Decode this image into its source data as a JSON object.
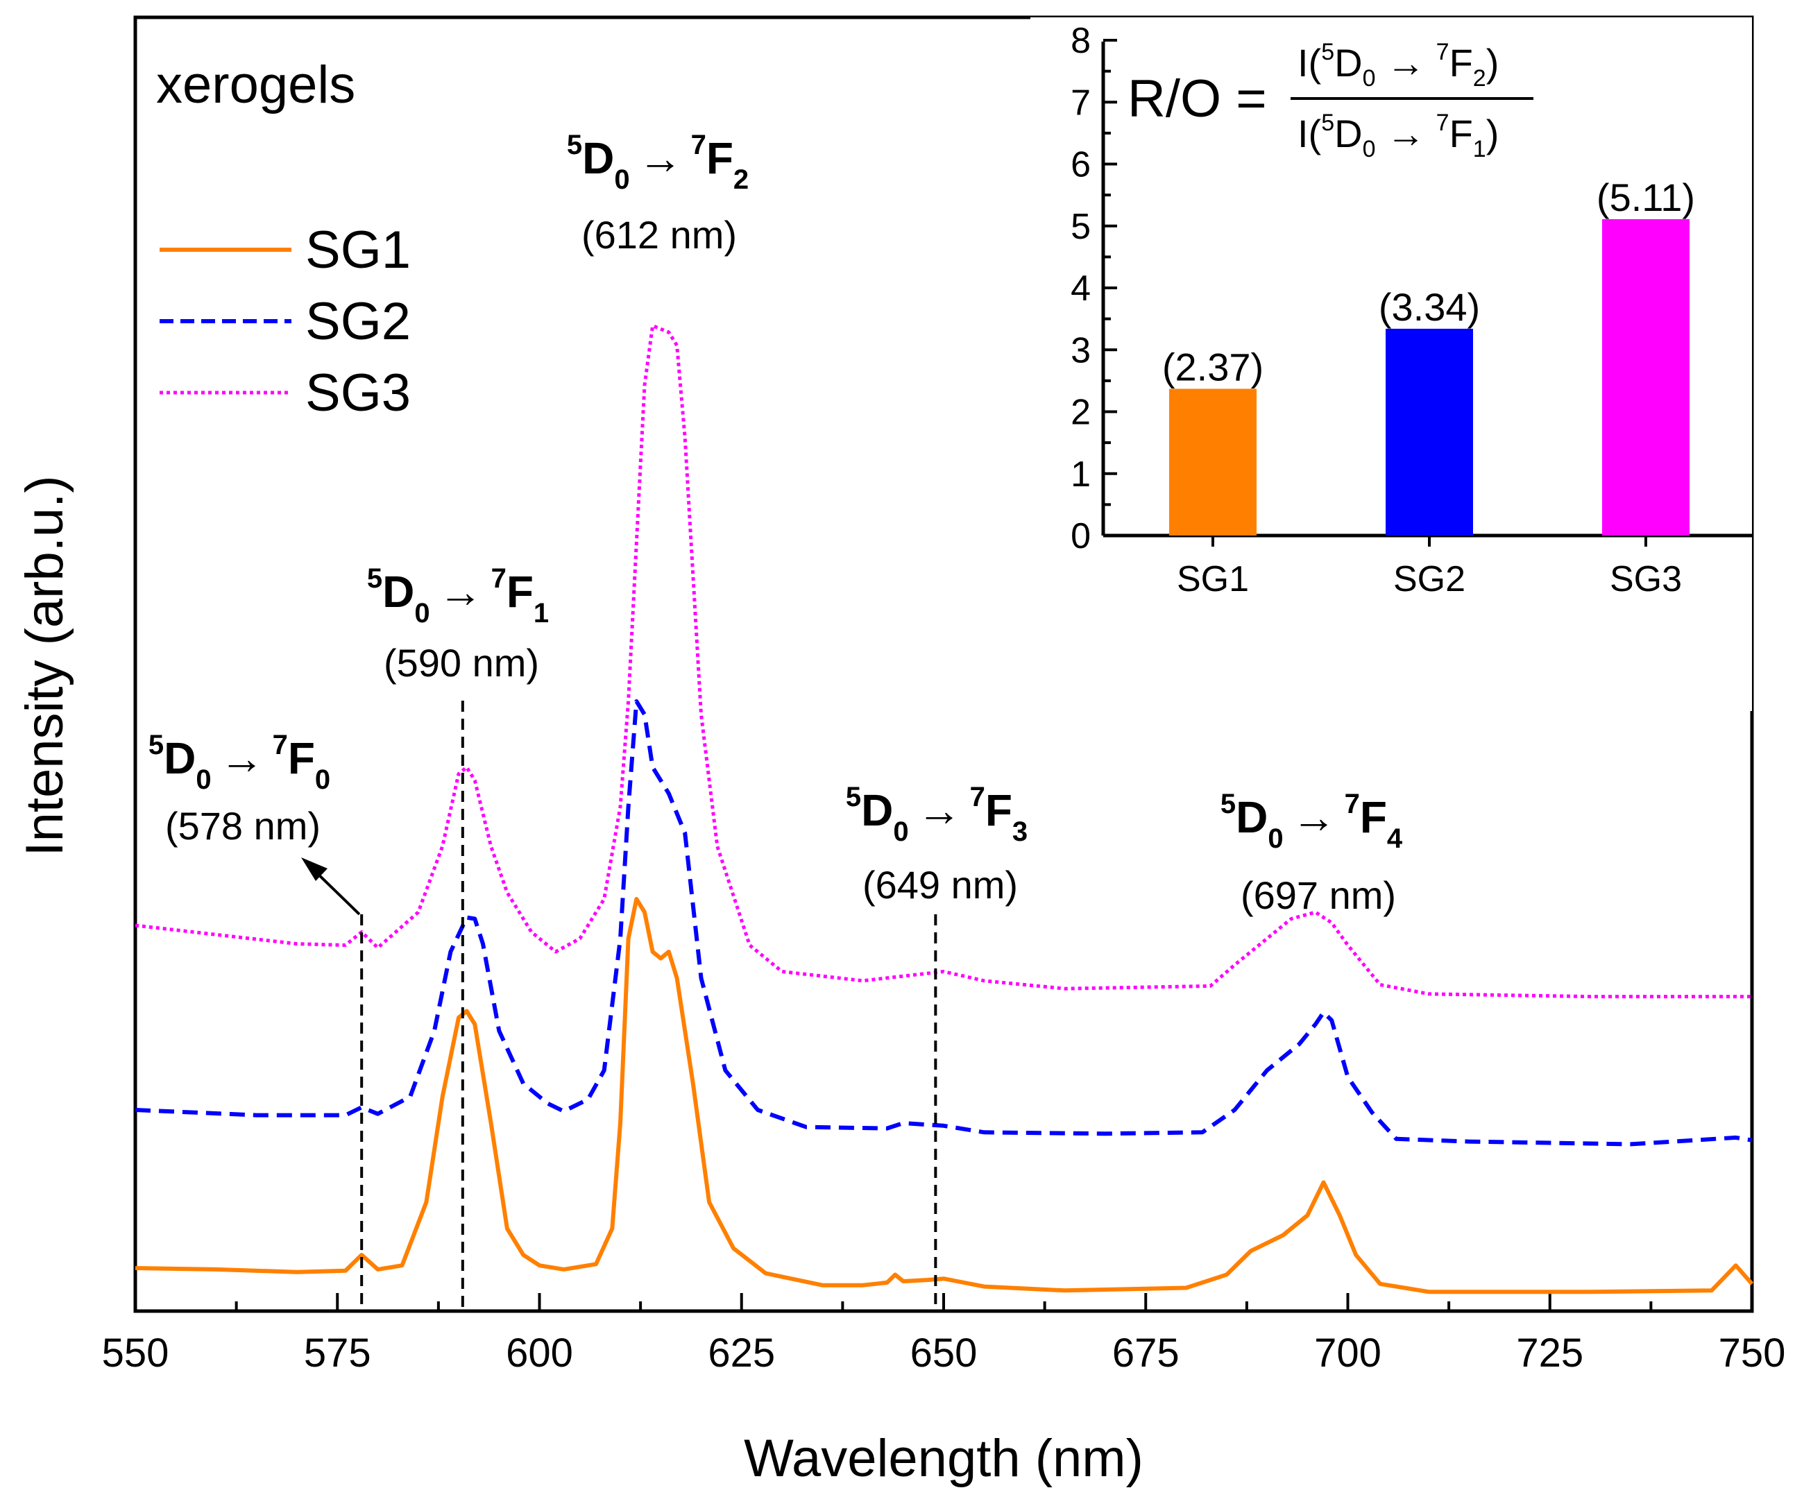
{
  "chart_data": [
    {
      "type": "line",
      "title": "",
      "panel_label": "xerogels",
      "xlabel": "Wavelength (nm)",
      "ylabel": "Intensity (arb.u.)",
      "xlim": [
        550,
        750
      ],
      "ylim": [
        0,
        100
      ],
      "x_ticks": [
        "550",
        "575",
        "600",
        "625",
        "650",
        "675",
        "700",
        "725",
        "750"
      ],
      "legend_position": "top-left",
      "series": [
        {
          "name": "SG1",
          "color": "#ff8000",
          "style": "solid",
          "points": [
            [
              550,
              3.0
            ],
            [
              560,
              2.9
            ],
            [
              570,
              2.7
            ],
            [
              576,
              2.8
            ],
            [
              578,
              4.0
            ],
            [
              580,
              2.9
            ],
            [
              583,
              3.2
            ],
            [
              586,
              8
            ],
            [
              588,
              16
            ],
            [
              590,
              22
            ],
            [
              591,
              22.5
            ],
            [
              592,
              21.5
            ],
            [
              594,
              14
            ],
            [
              596,
              6
            ],
            [
              598,
              4.0
            ],
            [
              600,
              3.2
            ],
            [
              603,
              2.9
            ],
            [
              607,
              3.3
            ],
            [
              609,
              6
            ],
            [
              610,
              14
            ],
            [
              611,
              28
            ],
            [
              612,
              31
            ],
            [
              613,
              30
            ],
            [
              614,
              27
            ],
            [
              615,
              26.5
            ],
            [
              616,
              27
            ],
            [
              617,
              25
            ],
            [
              619,
              17
            ],
            [
              621,
              8
            ],
            [
              624,
              4.5
            ],
            [
              628,
              2.6
            ],
            [
              635,
              1.7
            ],
            [
              640,
              1.7
            ],
            [
              643,
              1.9
            ],
            [
              644,
              2.5
            ],
            [
              645,
              2.0
            ],
            [
              648,
              2.1
            ],
            [
              650,
              2.2
            ],
            [
              655,
              1.6
            ],
            [
              665,
              1.3
            ],
            [
              680,
              1.5
            ],
            [
              685,
              2.5
            ],
            [
              688,
              4.3
            ],
            [
              692,
              5.5
            ],
            [
              695,
              7
            ],
            [
              697,
              9.5
            ],
            [
              699,
              7
            ],
            [
              701,
              4
            ],
            [
              704,
              1.8
            ],
            [
              710,
              1.2
            ],
            [
              730,
              1.2
            ],
            [
              745,
              1.3
            ],
            [
              748,
              3.2
            ],
            [
              750,
              1.8
            ]
          ]
        },
        {
          "name": "SG2",
          "color": "#0000ff",
          "style": "dashed",
          "points": [
            [
              550,
              15
            ],
            [
              565,
              14.6
            ],
            [
              576,
              14.6
            ],
            [
              578,
              15.2
            ],
            [
              580,
              14.7
            ],
            [
              584,
              16
            ],
            [
              587,
              21
            ],
            [
              589,
              27
            ],
            [
              591,
              29.6
            ],
            [
              592,
              29.5
            ],
            [
              593,
              27.6
            ],
            [
              595,
              21
            ],
            [
              598,
              17
            ],
            [
              601,
              15.5
            ],
            [
              603,
              14.9
            ],
            [
              606,
              15.8
            ],
            [
              608,
              18
            ],
            [
              610,
              28
            ],
            [
              611,
              38
            ],
            [
              612,
              46
            ],
            [
              613,
              45
            ],
            [
              614,
              41
            ],
            [
              616,
              39
            ],
            [
              618,
              36
            ],
            [
              620,
              25
            ],
            [
              623,
              18
            ],
            [
              627,
              15
            ],
            [
              633,
              13.7
            ],
            [
              643,
              13.6
            ],
            [
              645,
              14
            ],
            [
              650,
              13.8
            ],
            [
              655,
              13.3
            ],
            [
              670,
              13.2
            ],
            [
              682,
              13.3
            ],
            [
              686,
              15
            ],
            [
              690,
              18
            ],
            [
              694,
              20
            ],
            [
              696,
              21.5
            ],
            [
              697,
              22.4
            ],
            [
              698,
              21.8
            ],
            [
              700,
              17.5
            ],
            [
              703,
              14.8
            ],
            [
              706,
              12.8
            ],
            [
              715,
              12.6
            ],
            [
              735,
              12.4
            ],
            [
              748,
              12.9
            ],
            [
              750,
              12.7
            ]
          ]
        },
        {
          "name": "SG3",
          "color": "#ff00ff",
          "style": "dotted",
          "points": [
            [
              550,
              29
            ],
            [
              560,
              28.3
            ],
            [
              570,
              27.6
            ],
            [
              576,
              27.5
            ],
            [
              578,
              28.5
            ],
            [
              580,
              27.3
            ],
            [
              585,
              30
            ],
            [
              588,
              35
            ],
            [
              590,
              40.5
            ],
            [
              591,
              41
            ],
            [
              592,
              40
            ],
            [
              594,
              35
            ],
            [
              596,
              31.5
            ],
            [
              599,
              28.5
            ],
            [
              602,
              27
            ],
            [
              605,
              28
            ],
            [
              608,
              31
            ],
            [
              610,
              38
            ],
            [
              611,
              46
            ],
            [
              612,
              58
            ],
            [
              613,
              70
            ],
            [
              614,
              74.5
            ],
            [
              616,
              74
            ],
            [
              617,
              73
            ],
            [
              618,
              66
            ],
            [
              620,
              45
            ],
            [
              622,
              35
            ],
            [
              626,
              27.5
            ],
            [
              630,
              25.5
            ],
            [
              640,
              24.8
            ],
            [
              650,
              25.5
            ],
            [
              655,
              24.8
            ],
            [
              665,
              24.2
            ],
            [
              683,
              24.4
            ],
            [
              686,
              26
            ],
            [
              690,
              28
            ],
            [
              693,
              29.5
            ],
            [
              696,
              30
            ],
            [
              698,
              29.2
            ],
            [
              700,
              27.5
            ],
            [
              704,
              24.5
            ],
            [
              710,
              23.8
            ],
            [
              730,
              23.6
            ],
            [
              750,
              23.6
            ]
          ]
        }
      ],
      "annotations": [
        {
          "main": "D",
          "sup1": "5",
          "sub1": "0",
          "arrow": "→",
          "sup2": "7",
          "f": "F",
          "sub2": "0",
          "wavelength": "(578 nm)",
          "x": 578
        },
        {
          "main": "D",
          "sup1": "5",
          "sub1": "0",
          "arrow": "→",
          "sup2": "7",
          "f": "F",
          "sub2": "1",
          "wavelength": "(590 nm)",
          "x": 590.5
        },
        {
          "main": "D",
          "sup1": "5",
          "sub1": "0",
          "arrow": "→",
          "sup2": "7",
          "f": "F",
          "sub2": "2",
          "wavelength": "(612 nm)",
          "x": 612
        },
        {
          "main": "D",
          "sup1": "5",
          "sub1": "0",
          "arrow": "→",
          "sup2": "7",
          "f": "F",
          "sub2": "3",
          "wavelength": "(649 nm)",
          "x": 649
        },
        {
          "main": "D",
          "sup1": "5",
          "sub1": "0",
          "arrow": "→",
          "sup2": "7",
          "f": "F",
          "sub2": "4",
          "wavelength": "(697 nm)",
          "x": 697
        }
      ]
    },
    {
      "type": "bar",
      "title": "",
      "categories": [
        "SG1",
        "SG2",
        "SG3"
      ],
      "values": [
        2.37,
        3.34,
        5.11
      ],
      "value_labels": [
        "(2.37)",
        "(3.34)",
        "(5.11)"
      ],
      "colors": [
        "#ff8000",
        "#0000ff",
        "#ff00ff"
      ],
      "ylim": [
        0,
        8
      ],
      "y_ticks": [
        "0",
        "1",
        "2",
        "3",
        "4",
        "5",
        "6",
        "7",
        "8"
      ],
      "formula": {
        "lhs": "R/O =",
        "num": {
          "open": "I(",
          "sup1": "5",
          "d": "D",
          "sub1": "0",
          "arrow": " → ",
          "sup2": "7",
          "f": "F",
          "sub2": "2",
          "close": ")"
        },
        "den": {
          "open": "I(",
          "sup1": "5",
          "d": "D",
          "sub1": "0",
          "arrow": " → ",
          "sup2": "7",
          "f": "F",
          "sub2": "1",
          "close": ")"
        }
      }
    }
  ]
}
